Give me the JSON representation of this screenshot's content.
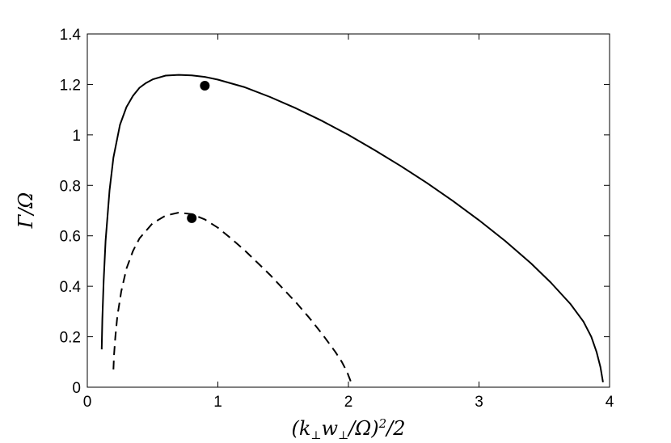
{
  "chart_data": {
    "type": "line",
    "title": "",
    "xlabel": "(k⊥w⊥/Ω)²/2",
    "ylabel": "Γ/Ω",
    "xlim": [
      0,
      4
    ],
    "ylim": [
      0,
      1.4
    ],
    "x_ticks": [
      "0",
      "1",
      "2",
      "3",
      "4"
    ],
    "y_ticks": [
      "0",
      "0.2",
      "0.4",
      "0.6",
      "0.8",
      "1",
      "1.2",
      "1.4"
    ],
    "grid": false,
    "legend": "none",
    "series": [
      {
        "style": "solid",
        "color": "#000000",
        "x": [
          0.11,
          0.115,
          0.125,
          0.14,
          0.17,
          0.2,
          0.25,
          0.3,
          0.35,
          0.4,
          0.45,
          0.5,
          0.6,
          0.7,
          0.8,
          0.9,
          1.0,
          1.2,
          1.4,
          1.6,
          1.8,
          2.0,
          2.2,
          2.4,
          2.6,
          2.8,
          3.0,
          3.2,
          3.4,
          3.55,
          3.7,
          3.8,
          3.86,
          3.9,
          3.93,
          3.95
        ],
        "y": [
          0.15,
          0.27,
          0.42,
          0.58,
          0.78,
          0.91,
          1.04,
          1.11,
          1.155,
          1.187,
          1.206,
          1.22,
          1.235,
          1.238,
          1.236,
          1.23,
          1.219,
          1.19,
          1.15,
          1.105,
          1.055,
          1.0,
          0.94,
          0.877,
          0.81,
          0.738,
          0.662,
          0.58,
          0.49,
          0.415,
          0.33,
          0.26,
          0.2,
          0.14,
          0.08,
          0.02
        ]
      },
      {
        "style": "dashed",
        "color": "#000000",
        "x": [
          0.2,
          0.205,
          0.215,
          0.23,
          0.26,
          0.3,
          0.35,
          0.4,
          0.5,
          0.6,
          0.7,
          0.8,
          0.9,
          1.0,
          1.1,
          1.2,
          1.3,
          1.4,
          1.5,
          1.6,
          1.7,
          1.8,
          1.9,
          1.95,
          1.99,
          2.02
        ],
        "y": [
          0.07,
          0.13,
          0.2,
          0.28,
          0.38,
          0.47,
          0.54,
          0.59,
          0.65,
          0.68,
          0.692,
          0.686,
          0.665,
          0.632,
          0.59,
          0.545,
          0.495,
          0.445,
          0.39,
          0.335,
          0.275,
          0.21,
          0.14,
          0.1,
          0.06,
          0.02
        ]
      }
    ],
    "points": [
      {
        "x": 0.9,
        "y": 1.195,
        "color": "#000000"
      },
      {
        "x": 0.8,
        "y": 0.67,
        "color": "#000000"
      }
    ]
  }
}
